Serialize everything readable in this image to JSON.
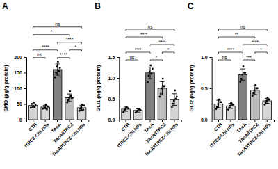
{
  "chart_data": [
    {
      "type": "bar",
      "title": "A",
      "y_label": "SMO (pg/g protein)",
      "categories": [
        "CTR",
        "ITRCZ-Cht NPs",
        "TAcA",
        "TAcA/ITRCZ",
        "TAcA/ITRCZ-Cht NPs"
      ],
      "values": [
        45,
        40,
        160,
        70,
        38
      ],
      "errors": [
        6,
        5,
        18,
        12,
        8
      ],
      "points": [
        [
          38,
          50,
          42,
          55,
          40,
          47
        ],
        [
          35,
          44,
          38,
          48,
          33,
          42
        ],
        [
          135,
          150,
          170,
          185,
          155,
          165
        ],
        [
          55,
          62,
          70,
          90,
          75,
          68
        ],
        [
          28,
          35,
          40,
          48,
          32,
          45
        ]
      ],
      "colors": [
        "#d4d4d4",
        "#d4d4d4",
        "#808080",
        "#bdbdbd",
        "#d4d4d4"
      ],
      "ylim": [
        0,
        200
      ],
      "yticks": [
        0,
        50,
        100,
        150,
        200
      ],
      "comparisons": [
        {
          "groups": [
            "TAcA",
            "TAcA/ITRCZ"
          ],
          "label": "****"
        },
        {
          "groups": [
            "TAcA/ITRCZ",
            "TAcA/ITRCZ-Cht NPs"
          ],
          "label": "*"
        },
        {
          "groups": [
            "CTR",
            "ITRCZ-Cht NPs"
          ],
          "label": "ns"
        },
        {
          "groups": [
            "TAcA",
            "TAcA/ITRCZ-Cht NPs"
          ],
          "label": "****"
        },
        {
          "groups": [
            "CTR",
            "TAcA"
          ],
          "label": "****"
        },
        {
          "groups": [
            "CTR",
            "TAcA/ITRCZ"
          ],
          "label": "*"
        },
        {
          "groups": [
            "CTR",
            "TAcA/ITRCZ-Cht NPs"
          ],
          "label": "ns"
        }
      ]
    },
    {
      "type": "bar",
      "title": "B",
      "y_label": "GLI1 (ng/g protein)",
      "categories": [
        "CTR",
        "ITRCZ-Cht NPs",
        "TAcA",
        "TAcA/ITRCZ",
        "TAcA/ITRCZ-Cht NPs"
      ],
      "values": [
        0.25,
        0.22,
        1.12,
        0.75,
        0.48
      ],
      "errors": [
        0.05,
        0.04,
        0.14,
        0.16,
        0.14
      ],
      "points": [
        [
          0.18,
          0.22,
          0.25,
          0.3,
          0.28,
          0.27
        ],
        [
          0.17,
          0.2,
          0.22,
          0.26,
          0.24,
          0.23
        ],
        [
          0.9,
          1.05,
          1.15,
          1.3,
          1.1,
          1.22
        ],
        [
          0.55,
          0.62,
          0.75,
          0.98,
          0.8,
          0.8
        ],
        [
          0.3,
          0.38,
          0.45,
          0.7,
          0.5,
          0.55
        ]
      ],
      "colors": [
        "#d4d4d4",
        "#d4d4d4",
        "#808080",
        "#bdbdbd",
        "#d4d4d4"
      ],
      "ylim": [
        0,
        1.5
      ],
      "yticks": [
        {
          "value": 0,
          "label": "0.0"
        },
        {
          "value": 0.5,
          "label": "0.5"
        },
        {
          "value": 1,
          "label": "1.0"
        },
        {
          "value": 1.5,
          "label": "1.5"
        }
      ],
      "comparisons": [
        {
          "groups": [
            "TAcA",
            "TAcA/ITRCZ"
          ],
          "label": "*"
        },
        {
          "groups": [
            "TAcA/ITRCZ",
            "TAcA/ITRCZ-Cht NPs"
          ],
          "label": "*"
        },
        {
          "groups": [
            "CTR",
            "ITRCZ-Cht NPs"
          ],
          "label": "ns"
        },
        {
          "groups": [
            "TAcA",
            "TAcA/ITRCZ-Cht NPs"
          ],
          "label": "****"
        },
        {
          "groups": [
            "CTR",
            "TAcA"
          ],
          "label": "****"
        },
        {
          "groups": [
            "CTR",
            "TAcA/ITRCZ"
          ],
          "label": "****"
        },
        {
          "groups": [
            "CTR",
            "TAcA/ITRCZ-Cht NPs"
          ],
          "label": "ns"
        }
      ]
    },
    {
      "type": "bar",
      "title": "C",
      "y_label": "GLI2 (ng/g protein)",
      "categories": [
        "CTR",
        "ITRCZ-Cht NPs",
        "TAcA",
        "TAcA/ITRCZ",
        "TAcA/ITRCZ-Cht NPs"
      ],
      "values": [
        0.25,
        0.22,
        0.72,
        0.47,
        0.3
      ],
      "errors": [
        0.06,
        0.04,
        0.09,
        0.07,
        0.04
      ],
      "points": [
        [
          0.17,
          0.2,
          0.25,
          0.32,
          0.28,
          0.28
        ],
        [
          0.16,
          0.19,
          0.22,
          0.27,
          0.24,
          0.24
        ],
        [
          0.6,
          0.65,
          0.72,
          0.85,
          0.75,
          0.75
        ],
        [
          0.38,
          0.42,
          0.47,
          0.55,
          0.5,
          0.5
        ],
        [
          0.24,
          0.27,
          0.3,
          0.35,
          0.32,
          0.32
        ]
      ],
      "colors": [
        "#d4d4d4",
        "#d4d4d4",
        "#808080",
        "#bdbdbd",
        "#d4d4d4"
      ],
      "ylim": [
        0,
        1
      ],
      "yticks": [
        {
          "value": 0,
          "label": "0.0"
        },
        {
          "value": 0.5,
          "label": "0.5"
        },
        {
          "value": 1,
          "label": "1.0"
        }
      ],
      "comparisons": [
        {
          "groups": [
            "TAcA",
            "TAcA/ITRCZ"
          ],
          "label": "***"
        },
        {
          "groups": [
            "TAcA/ITRCZ",
            "TAcA/ITRCZ-Cht NPs"
          ],
          "label": "*"
        },
        {
          "groups": [
            "CTR",
            "ITRCZ-Cht NPs"
          ],
          "label": "ns"
        },
        {
          "groups": [
            "TAcA",
            "TAcA/ITRCZ-Cht NPs"
          ],
          "label": "****"
        },
        {
          "groups": [
            "CTR",
            "TAcA"
          ],
          "label": "****"
        },
        {
          "groups": [
            "CTR",
            "TAcA/ITRCZ"
          ],
          "label": "**"
        },
        {
          "groups": [
            "CTR",
            "TAcA/ITRCZ-Cht NPs"
          ],
          "label": "ns"
        }
      ]
    }
  ]
}
